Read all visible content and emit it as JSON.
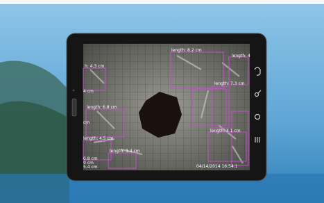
{
  "screen": {
    "measurements": [
      {
        "label": "length: 8.2 cm"
      },
      {
        "label": "length: 4"
      },
      {
        "label": "h: 4.3 cm"
      },
      {
        "label": "length: 7.3 cm"
      },
      {
        "label": "4 cm"
      },
      {
        "label": "length: 6.8 cm"
      },
      {
        "label": "length: 4.1 cm"
      },
      {
        "label": "cm"
      },
      {
        "label": "length: 4.5 cm"
      },
      {
        "label": "length: 3.4 cm"
      },
      {
        "label": "0.8 cm"
      },
      {
        "label": "9 cm"
      },
      {
        "label": "5.4 cm"
      }
    ],
    "timestamp": "04/14/2014 16:54:1"
  }
}
